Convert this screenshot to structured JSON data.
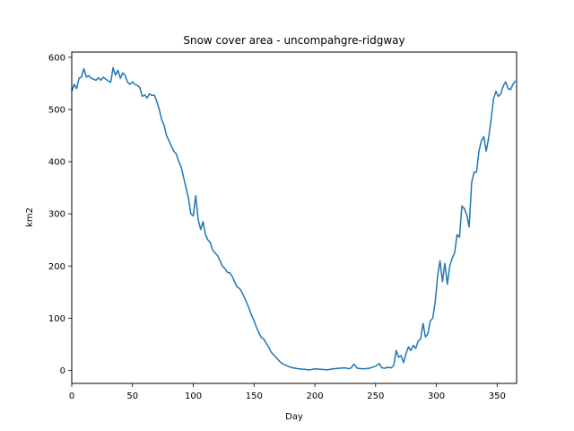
{
  "chart_data": {
    "type": "line",
    "title": "Snow cover area - uncompahgre-ridgway",
    "xlabel": "Day",
    "ylabel": "km2",
    "xlim": [
      0,
      366
    ],
    "ylim": [
      -25,
      610
    ],
    "xticks": [
      0,
      50,
      100,
      150,
      200,
      250,
      300,
      350
    ],
    "yticks": [
      0,
      100,
      200,
      300,
      400,
      500,
      600
    ],
    "grid": false,
    "series": [
      {
        "color": "#1f77b4",
        "x": [
          0,
          2,
          4,
          6,
          8,
          10,
          12,
          14,
          16,
          18,
          20,
          22,
          24,
          26,
          28,
          30,
          32,
          34,
          36,
          38,
          40,
          42,
          44,
          46,
          48,
          50,
          52,
          54,
          56,
          58,
          60,
          62,
          64,
          66,
          68,
          70,
          72,
          74,
          76,
          78,
          80,
          82,
          84,
          86,
          88,
          90,
          92,
          94,
          96,
          98,
          100,
          102,
          104,
          106,
          108,
          110,
          112,
          114,
          116,
          118,
          120,
          122,
          124,
          126,
          128,
          130,
          132,
          134,
          136,
          138,
          140,
          142,
          144,
          146,
          148,
          150,
          152,
          154,
          156,
          158,
          160,
          162,
          164,
          166,
          168,
          170,
          172,
          174,
          176,
          178,
          180,
          182,
          184,
          186,
          188,
          190,
          192,
          194,
          196,
          198,
          200,
          205,
          210,
          215,
          220,
          225,
          228,
          230,
          232,
          235,
          240,
          245,
          250,
          253,
          255,
          258,
          260,
          263,
          265,
          267,
          269,
          271,
          273,
          275,
          277,
          279,
          281,
          283,
          285,
          287,
          289,
          291,
          293,
          295,
          297,
          299,
          301,
          303,
          305,
          307,
          309,
          311,
          313,
          315,
          317,
          319,
          321,
          323,
          325,
          327,
          329,
          331,
          333,
          335,
          337,
          339,
          341,
          343,
          345,
          347,
          349,
          351,
          353,
          355,
          357,
          359,
          361,
          363,
          365
        ],
        "values": [
          535,
          548,
          540,
          560,
          562,
          578,
          562,
          565,
          560,
          558,
          556,
          561,
          556,
          562,
          558,
          555,
          552,
          580,
          566,
          575,
          560,
          570,
          565,
          552,
          548,
          553,
          548,
          546,
          542,
          525,
          528,
          522,
          530,
          527,
          527,
          515,
          500,
          480,
          470,
          450,
          440,
          430,
          420,
          415,
          400,
          390,
          370,
          350,
          330,
          300,
          296,
          335,
          290,
          270,
          285,
          260,
          250,
          245,
          230,
          225,
          220,
          210,
          200,
          195,
          188,
          187,
          180,
          170,
          160,
          157,
          150,
          140,
          130,
          118,
          105,
          95,
          82,
          72,
          63,
          60,
          52,
          45,
          35,
          30,
          25,
          20,
          15,
          12,
          10,
          8,
          6,
          5,
          4,
          3,
          3,
          2,
          2,
          1,
          1,
          2,
          3,
          2,
          1,
          3,
          4,
          5,
          3,
          5,
          12,
          4,
          3,
          4,
          8,
          13,
          5,
          4,
          6,
          5,
          10,
          38,
          25,
          28,
          15,
          32,
          45,
          38,
          48,
          42,
          56,
          60,
          90,
          64,
          70,
          95,
          100,
          130,
          180,
          210,
          170,
          205,
          165,
          200,
          215,
          225,
          260,
          255,
          315,
          310,
          298,
          275,
          360,
          380,
          380,
          420,
          440,
          448,
          420,
          445,
          480,
          520,
          535,
          525,
          530,
          545,
          553,
          540,
          538,
          548,
          555
        ]
      }
    ]
  }
}
